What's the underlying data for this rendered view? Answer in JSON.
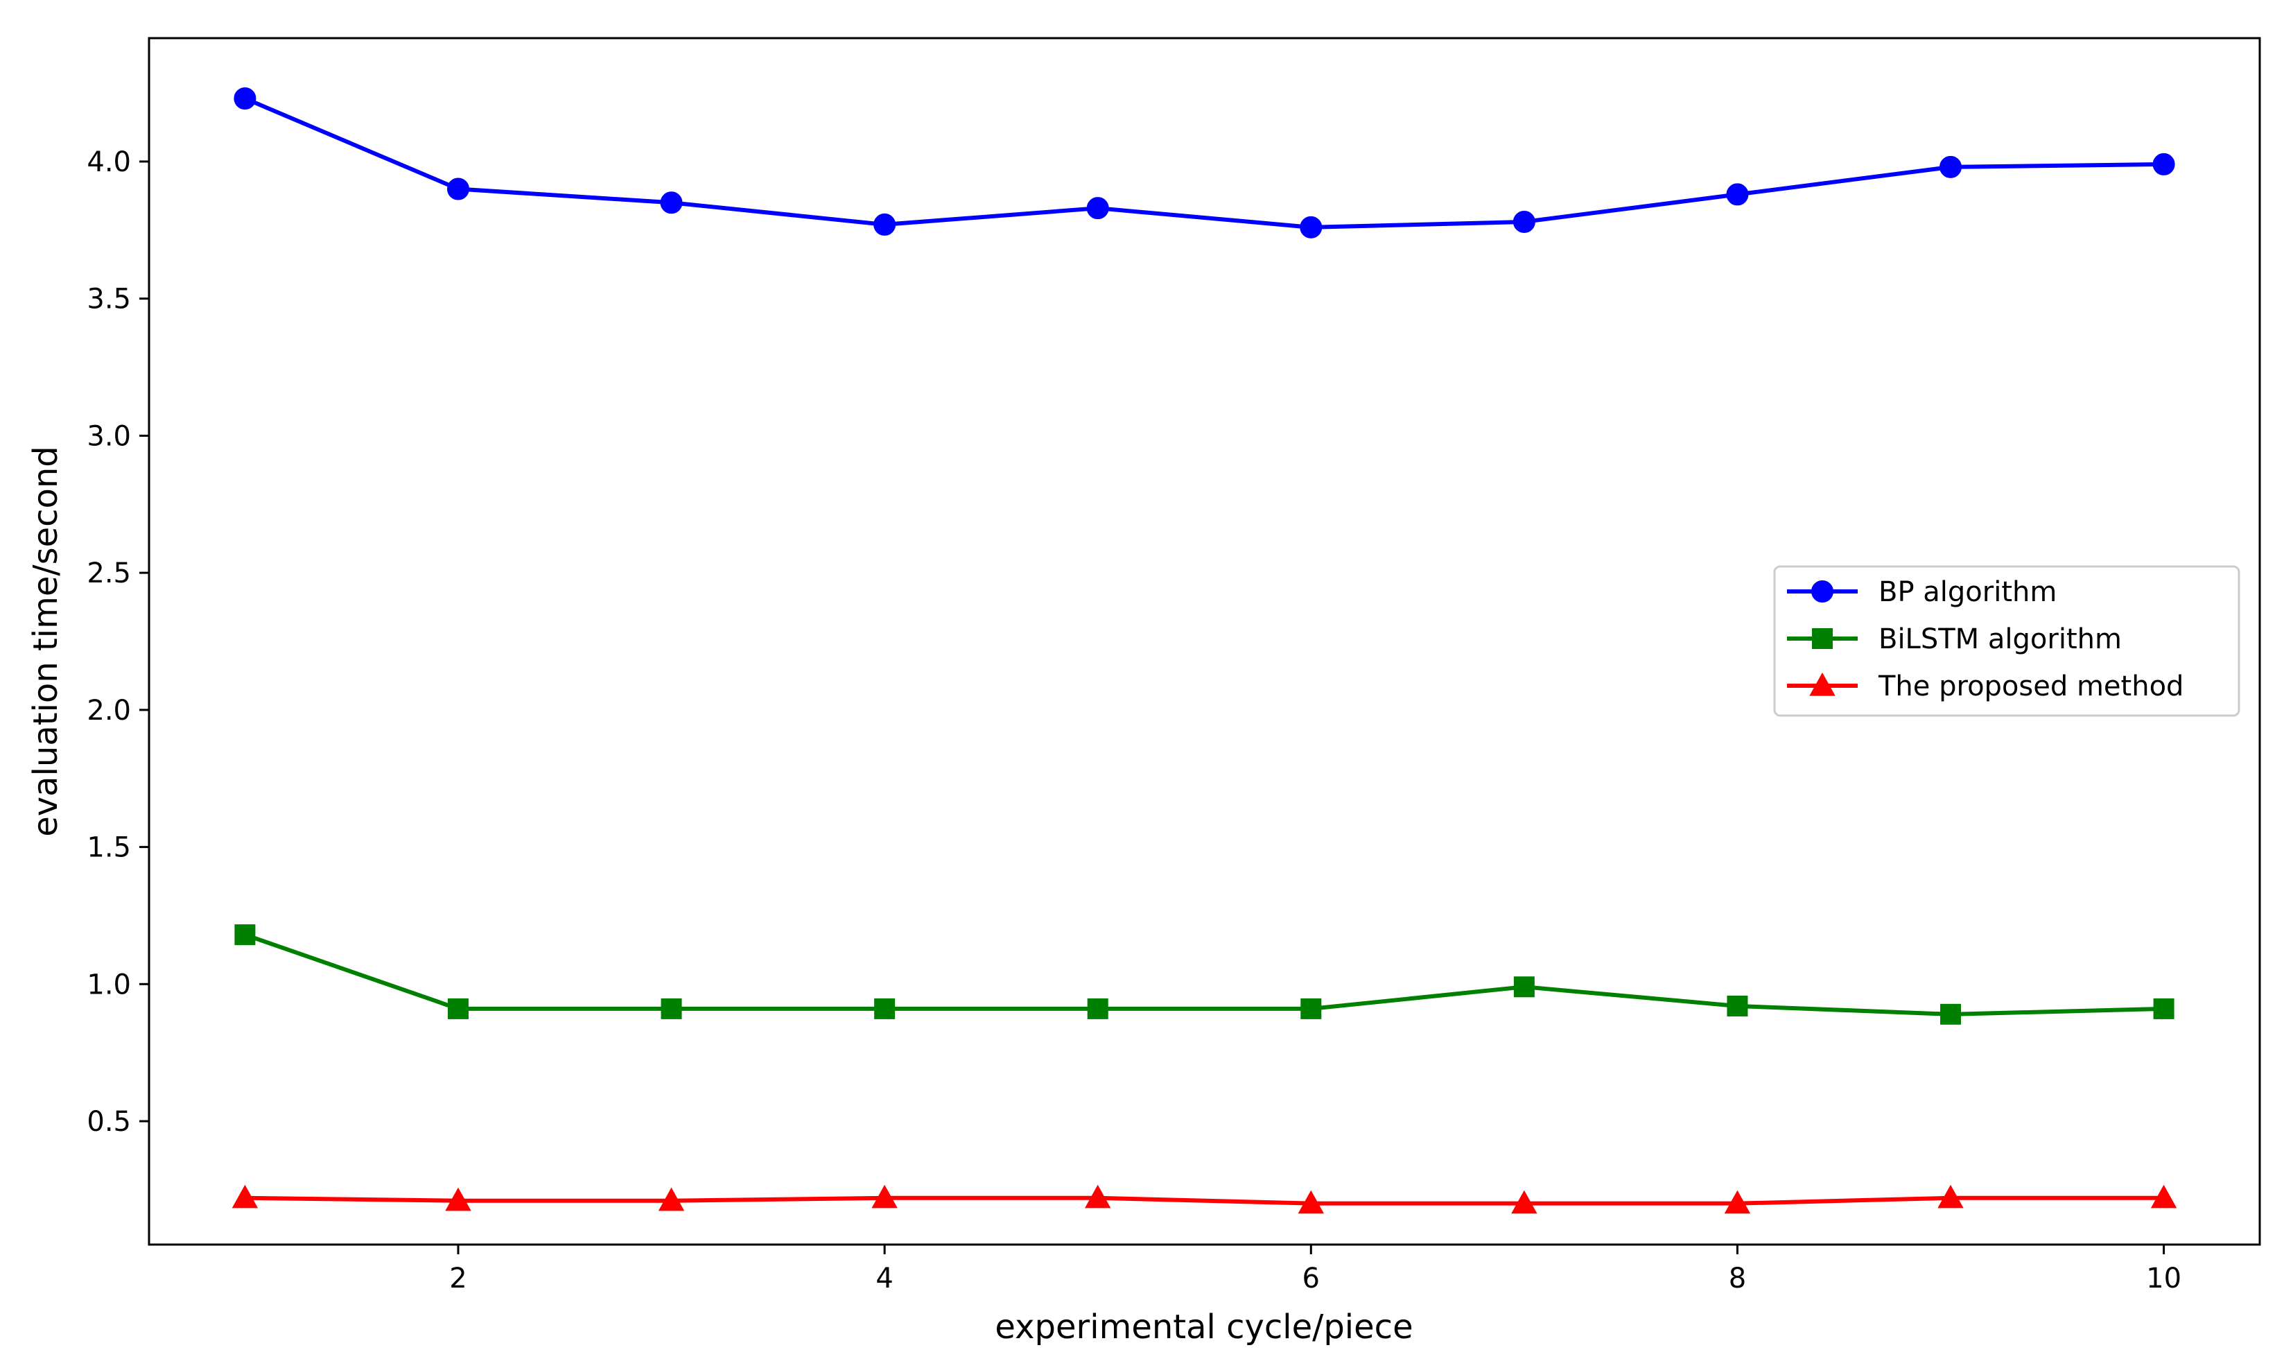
{
  "chart_data": {
    "type": "line",
    "title": "",
    "xlabel": "experimental cycle/piece",
    "ylabel": "evaluation time/second",
    "x": [
      1,
      2,
      3,
      4,
      5,
      6,
      7,
      8,
      9,
      10
    ],
    "xlim": [
      0.55,
      10.45
    ],
    "ylim": [
      0.05,
      4.45
    ],
    "xticks": [
      2,
      4,
      6,
      8,
      10
    ],
    "xtick_labels": [
      "2",
      "4",
      "6",
      "8",
      "10"
    ],
    "yticks": [
      0.5,
      1.0,
      1.5,
      2.0,
      2.5,
      3.0,
      3.5,
      4.0
    ],
    "ytick_labels": [
      "0.5",
      "1.0",
      "1.5",
      "2.0",
      "2.5",
      "3.0",
      "3.5",
      "4.0"
    ],
    "grid": false,
    "legend_position": "right",
    "series": [
      {
        "name": "BP algorithm",
        "color": "#0000ff",
        "marker": "circle",
        "values": [
          4.23,
          3.9,
          3.85,
          3.77,
          3.83,
          3.76,
          3.78,
          3.88,
          3.98,
          3.99
        ]
      },
      {
        "name": "BiLSTM algorithm",
        "color": "#008000",
        "marker": "square",
        "values": [
          1.18,
          0.91,
          0.91,
          0.91,
          0.91,
          0.91,
          0.99,
          0.92,
          0.89,
          0.91
        ]
      },
      {
        "name": "The proposed method",
        "color": "#ff0000",
        "marker": "triangle",
        "values": [
          0.22,
          0.21,
          0.21,
          0.22,
          0.22,
          0.2,
          0.2,
          0.2,
          0.22,
          0.22
        ]
      }
    ]
  }
}
